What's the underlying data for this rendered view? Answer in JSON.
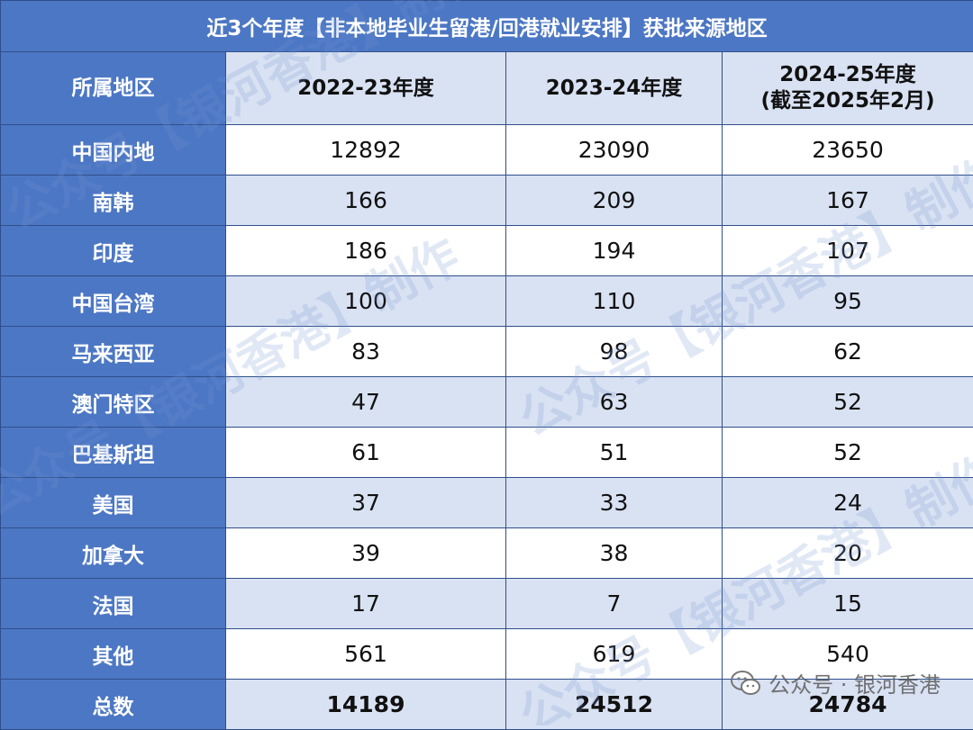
{
  "title": "近3个年度【非本地毕业生留港/回港就业安排】获批来源地区",
  "header": {
    "region": "所属地区",
    "y1": "2022-23年度",
    "y2": "2023-24年度",
    "y3_line1": "2024-25年度",
    "y3_line2": "(截至2025年2月)"
  },
  "rows": [
    {
      "region": "中国内地",
      "v1": "12892",
      "v2": "23090",
      "v3": "23650"
    },
    {
      "region": "南韩",
      "v1": "166",
      "v2": "209",
      "v3": "167"
    },
    {
      "region": "印度",
      "v1": "186",
      "v2": "194",
      "v3": "107"
    },
    {
      "region": "中国台湾",
      "v1": "100",
      "v2": "110",
      "v3": "95"
    },
    {
      "region": "马来西亚",
      "v1": "83",
      "v2": "98",
      "v3": "62"
    },
    {
      "region": "澳门特区",
      "v1": "47",
      "v2": "63",
      "v3": "52"
    },
    {
      "region": "巴基斯坦",
      "v1": "61",
      "v2": "51",
      "v3": "52"
    },
    {
      "region": "美国",
      "v1": "37",
      "v2": "33",
      "v3": "24"
    },
    {
      "region": "加拿大",
      "v1": "39",
      "v2": "38",
      "v3": "20"
    },
    {
      "region": "法国",
      "v1": "17",
      "v2": "7",
      "v3": "15"
    },
    {
      "region": "其他",
      "v1": "561",
      "v2": "619",
      "v3": "540"
    },
    {
      "region": "总数",
      "v1": "14189",
      "v2": "24512",
      "v3": "24784"
    }
  ],
  "watermark_text": "公众号【银河香港】制作",
  "footer": "公众号 · 银河香港",
  "colors": {
    "header_blue": "#4c77c4",
    "band_light": "#d9e2f3"
  }
}
